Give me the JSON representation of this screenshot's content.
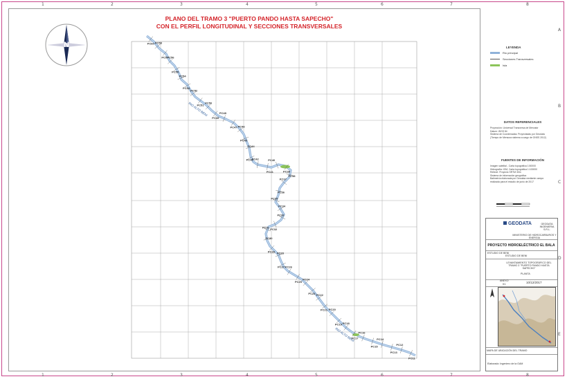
{
  "title": {
    "line1": "PLANO DEL TRAMO 3 \"PUERTO PANDO HASTA SAPECHO\"",
    "line2": "CON EL PERFIL LONGITUDINAL Y SECCIONES TRANSVERSALES"
  },
  "north_arrow": {
    "label": "N",
    "icon": "north-arrow-icon"
  },
  "ruler_numbers": {
    "top": [
      "1",
      "2",
      "3",
      "4",
      "5",
      "6",
      "7",
      "8"
    ],
    "side": [
      "A",
      "B",
      "C",
      "D",
      "E"
    ]
  },
  "river": {
    "name_upper": "RIO ALTO BENI",
    "name_lower": "RIO ALTO BENI",
    "color": "#8fb2d9"
  },
  "section_labels": [
    "PC60",
    "PC58",
    "PC57",
    "PC56",
    "PC55",
    "PC54",
    "PC53",
    "PC52",
    "PC51",
    "PC50",
    "PC49",
    "PC48",
    "PC47",
    "PC46",
    "PC45",
    "PC44",
    "PC43",
    "PC42",
    "PC41",
    "PC40",
    "PC39",
    "PC38",
    "PC37",
    "PC36",
    "PC35",
    "PC34",
    "PC33",
    "PC32",
    "PC31",
    "PC30",
    "PC29",
    "PC28",
    "PC27",
    "PC26",
    "PC25",
    "PC24",
    "PC23",
    "PC22",
    "PC21",
    "PC20",
    "PC19",
    "PC18",
    "PC17",
    "PC16",
    "PC15",
    "PC14",
    "PC13",
    "PC12",
    "PC11"
  ],
  "legend": {
    "title": "LEYENDA",
    "items": [
      {
        "label": "Rio principal",
        "color": "#8fb2d9"
      },
      {
        "label": "Secciones Transversales",
        "color": "#555555"
      },
      {
        "label": "Isla",
        "color": "#8cc45a"
      }
    ]
  },
  "datos_referenciales": {
    "title": "DATOS REFERENCIALES",
    "lines": [
      "Proyección: Universal Transversa de Mercator",
      "Datum: WGS 84",
      "Sistema de Coordenadas: Proyectadas por Geodata",
      "(Tiempo de Mensura sistema a cargo de GNSS 2012)"
    ]
  },
  "fuentes": {
    "title": "FUENTES DE INFORMACIÓN",
    "lines": [
      "Imagen satelital - Carta topográfica 1:50000",
      "Hidrografía: IGM, Carta topográfica 1:100000",
      "Relieve: Proyecto SRTM 30m",
      "Sistema de información geográfica",
      "Batimetría elaborada por Geodata mediante campo",
      "realizada para el estudio de junio de 2017"
    ]
  },
  "title_block": {
    "company": "GEODATA",
    "company_note": "GEODATA INGENIERIA S.R.L.",
    "client": "MINISTERIO DE HIDROCARBUROS Y ENERGIA",
    "project": "PROYECTO HIDROELÉCTRICO EL BALA",
    "row1_label": "ESTUDIO DE BENI",
    "row1_value": "ESTUDIO DE BENI",
    "row2_value": "LEVANTAMIENTO TOPOGRÁFICO DEL TRAMO 3 \"PUERTO PANDO HASTA SAPECHO\"",
    "row2_note": "PLANTA",
    "sheet_label": "ANEXO",
    "sheet_number": "01",
    "date": "10/12/2017",
    "inset_caption": "MAPA DE UBICACIÓN DEL TRAMO",
    "footer": "Elaborado: Ingeniero de la GAM"
  }
}
